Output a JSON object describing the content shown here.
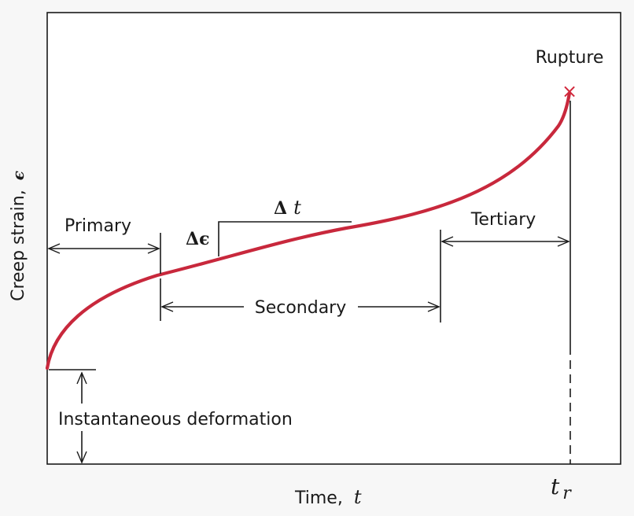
{
  "diagram": {
    "xlabel_text": "Time,",
    "xlabel_var": "t",
    "ylabel_text": "Creep strain,",
    "ylabel_var": "ϵ",
    "rupture_label": "Rupture",
    "rupture_marker": "×",
    "rupture_time_base": "t",
    "rupture_time_sub": "r",
    "stages": {
      "primary": "Primary",
      "secondary": "Secondary",
      "tertiary": "Tertiary"
    },
    "instantaneous_label": "Instantaneous deformation",
    "delta_strain": "Δϵ",
    "delta_time_symbol": "Δ",
    "delta_time_var": "t",
    "colors": {
      "curve": "#c8283c",
      "rupture_marker": "#d2283c",
      "ink": "#1a1a1a",
      "frame": "#1a1a1a",
      "background": "#ffffff"
    }
  }
}
